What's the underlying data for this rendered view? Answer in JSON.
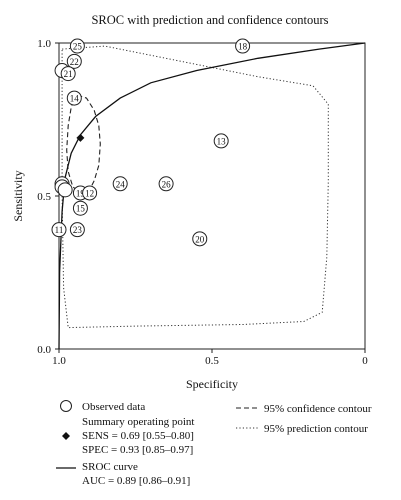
{
  "chart_data": {
    "type": "scatter",
    "title": "SROC with prediction and confidence contours",
    "xlabel": "Specificity",
    "ylabel": "Sensitivity",
    "x_reversed": true,
    "xlim": [
      1.0,
      0.0
    ],
    "ylim": [
      0.0,
      1.0
    ],
    "x_ticks": [
      "1.0",
      "0.5",
      "0"
    ],
    "y_ticks": [
      "0.0",
      "0.5",
      "1.0"
    ],
    "grid": false,
    "legend_position": "bottom",
    "observed_points": [
      {
        "label": "25",
        "spec": 0.94,
        "sens": 0.99
      },
      {
        "label": "18",
        "spec": 0.4,
        "sens": 0.99
      },
      {
        "label": "22",
        "spec": 0.95,
        "sens": 0.94
      },
      {
        "label": "",
        "spec": 0.99,
        "sens": 0.91
      },
      {
        "label": "21",
        "spec": 0.97,
        "sens": 0.9
      },
      {
        "label": "14",
        "spec": 0.95,
        "sens": 0.82
      },
      {
        "label": "13",
        "spec": 0.47,
        "sens": 0.68
      },
      {
        "label": "",
        "spec": 0.99,
        "sens": 0.54
      },
      {
        "label": "",
        "spec": 0.99,
        "sens": 0.53
      },
      {
        "label": "26",
        "spec": 0.65,
        "sens": 0.54
      },
      {
        "label": "24",
        "spec": 0.8,
        "sens": 0.54
      },
      {
        "label": "",
        "spec": 0.98,
        "sens": 0.52
      },
      {
        "label": "19",
        "spec": 0.93,
        "sens": 0.51
      },
      {
        "label": "12",
        "spec": 0.9,
        "sens": 0.51
      },
      {
        "label": "15",
        "spec": 0.93,
        "sens": 0.46
      },
      {
        "label": "11",
        "spec": 1.0,
        "sens": 0.39
      },
      {
        "label": "23",
        "spec": 0.94,
        "sens": 0.39
      },
      {
        "label": "20",
        "spec": 0.54,
        "sens": 0.36
      }
    ],
    "summary_point": {
      "spec": 0.93,
      "sens": 0.69
    },
    "sroc_curve": [
      [
        1.0,
        0.0
      ],
      [
        0.998,
        0.25
      ],
      [
        0.99,
        0.45
      ],
      [
        0.98,
        0.56
      ],
      [
        0.96,
        0.64
      ],
      [
        0.93,
        0.7
      ],
      [
        0.88,
        0.76
      ],
      [
        0.8,
        0.82
      ],
      [
        0.7,
        0.87
      ],
      [
        0.55,
        0.91
      ],
      [
        0.35,
        0.95
      ],
      [
        0.15,
        0.98
      ],
      [
        0.0,
        1.0
      ]
    ],
    "confidence_contour": [
      [
        0.94,
        0.83
      ],
      [
        0.91,
        0.82
      ],
      [
        0.885,
        0.78
      ],
      [
        0.87,
        0.73
      ],
      [
        0.865,
        0.67
      ],
      [
        0.87,
        0.6
      ],
      [
        0.885,
        0.55
      ],
      [
        0.9,
        0.52
      ],
      [
        0.93,
        0.51
      ],
      [
        0.955,
        0.53
      ],
      [
        0.97,
        0.58
      ],
      [
        0.975,
        0.65
      ],
      [
        0.97,
        0.73
      ],
      [
        0.96,
        0.79
      ],
      [
        0.95,
        0.82
      ],
      [
        0.94,
        0.83
      ]
    ],
    "prediction_contour": [
      [
        0.99,
        0.98
      ],
      [
        0.85,
        0.99
      ],
      [
        0.6,
        0.94
      ],
      [
        0.35,
        0.89
      ],
      [
        0.17,
        0.86
      ],
      [
        0.12,
        0.8
      ],
      [
        0.12,
        0.55
      ],
      [
        0.125,
        0.3
      ],
      [
        0.14,
        0.12
      ],
      [
        0.2,
        0.09
      ],
      [
        0.4,
        0.08
      ],
      [
        0.75,
        0.075
      ],
      [
        0.97,
        0.07
      ],
      [
        0.985,
        0.2
      ],
      [
        0.99,
        0.5
      ],
      [
        0.99,
        0.75
      ],
      [
        0.99,
        0.98
      ]
    ],
    "legend": {
      "observed": "Observed data",
      "summary_title": "Summary operating point",
      "sens_text": "SENS = 0.69 [0.55–0.80]",
      "spec_text": "SPEC = 0.93 [0.85–0.97]",
      "sroc_title": "SROC curve",
      "auc_text": "AUC = 0.89 [0.86–0.91]",
      "confidence": "95% confidence contour",
      "prediction": "95% prediction contour"
    }
  }
}
